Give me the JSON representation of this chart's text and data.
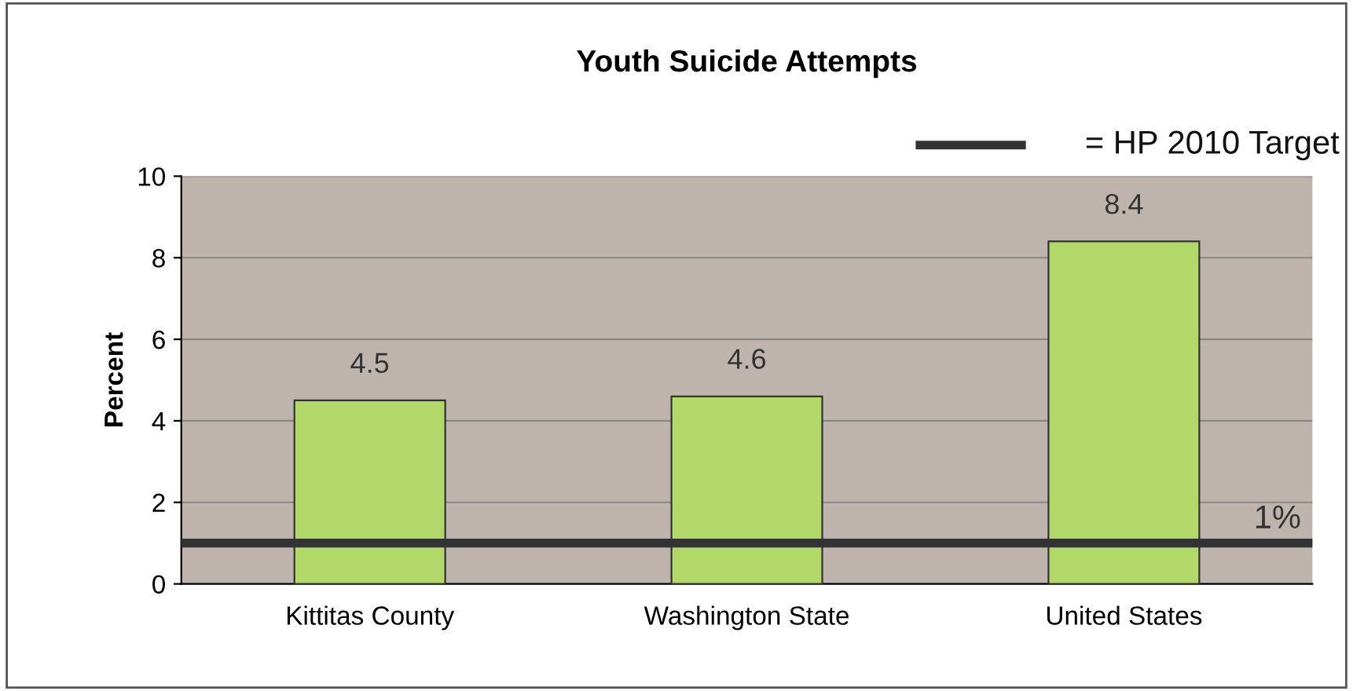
{
  "chart_data": {
    "type": "bar",
    "title": "Youth Suicide Attempts",
    "ylabel": "Percent",
    "categories": [
      "Kittitas County",
      "Washington State",
      "United States"
    ],
    "values": [
      4.5,
      4.6,
      8.4
    ],
    "color": "#b3d86a",
    "ylim": [
      0,
      10
    ],
    "yticks": [
      0,
      2,
      4,
      6,
      8,
      10
    ],
    "grid": "y",
    "data_labels": true,
    "ref_lines": [
      {
        "axis": "y",
        "value": 1,
        "label": "1%",
        "color": "#333333"
      }
    ],
    "annotations": [
      "= HP 2010 Target"
    ]
  }
}
